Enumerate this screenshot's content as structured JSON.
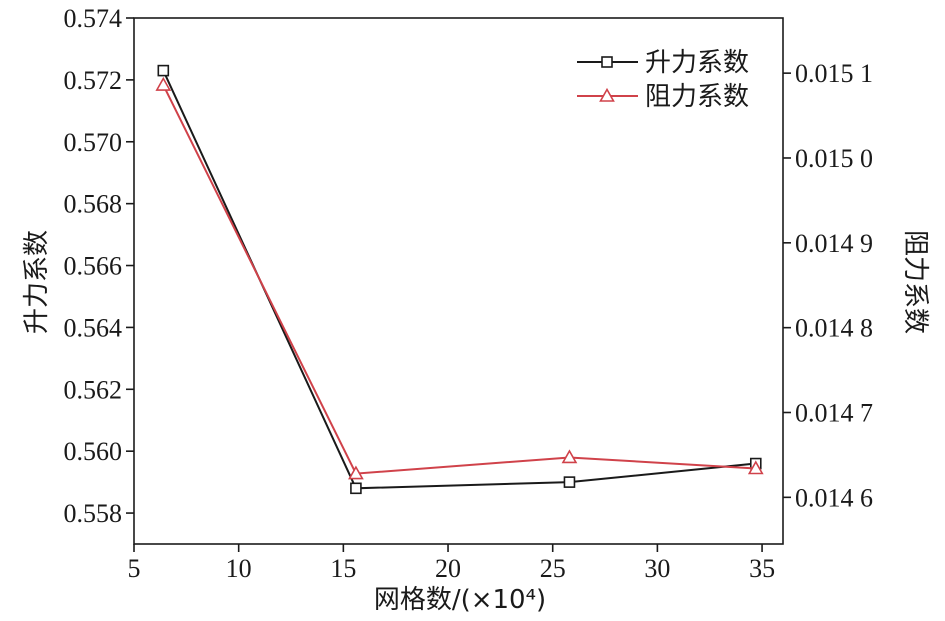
{
  "chart_data": {
    "type": "line",
    "x": [
      6.4,
      15.6,
      25.8,
      34.7
    ],
    "xlim": [
      5,
      36
    ],
    "xticks": [
      5,
      10,
      15,
      20,
      25,
      30,
      35
    ],
    "xtick_labels": [
      "5",
      "10",
      "15",
      "20",
      "25",
      "30",
      "35"
    ],
    "xlabel": "网格数/(×10⁴)",
    "ylabel_left": "升力系数",
    "ylim_left": [
      0.557,
      0.574
    ],
    "yticks_left": [
      0.558,
      0.56,
      0.562,
      0.564,
      0.566,
      0.568,
      0.57,
      0.572,
      0.574
    ],
    "ytick_labels_left": [
      "0.558",
      "0.560",
      "0.562",
      "0.564",
      "0.566",
      "0.568",
      "0.570",
      "0.572",
      "0.574"
    ],
    "ylabel_right": "阻力系数",
    "ylim_right": [
      0.014545,
      0.015165
    ],
    "yticks_right": [
      0.0146,
      0.0147,
      0.0148,
      0.0149,
      0.015,
      0.0151
    ],
    "ytick_labels_right": [
      "0.014 6",
      "0.014 7",
      "0.014 8",
      "0.014 9",
      "0.015 0",
      "0.015 1"
    ],
    "grid": false,
    "legend_position": "top-right",
    "series": [
      {
        "name": "升力系数",
        "axis": "left",
        "marker": "square",
        "color": "#1a1a1a",
        "values": [
          0.5723,
          0.5588,
          0.559,
          0.5596
        ]
      },
      {
        "name": "阻力系数",
        "axis": "right",
        "marker": "triangle",
        "color": "#d0424a",
        "values": [
          0.015086,
          0.014628,
          0.014647,
          0.014634
        ]
      }
    ]
  }
}
